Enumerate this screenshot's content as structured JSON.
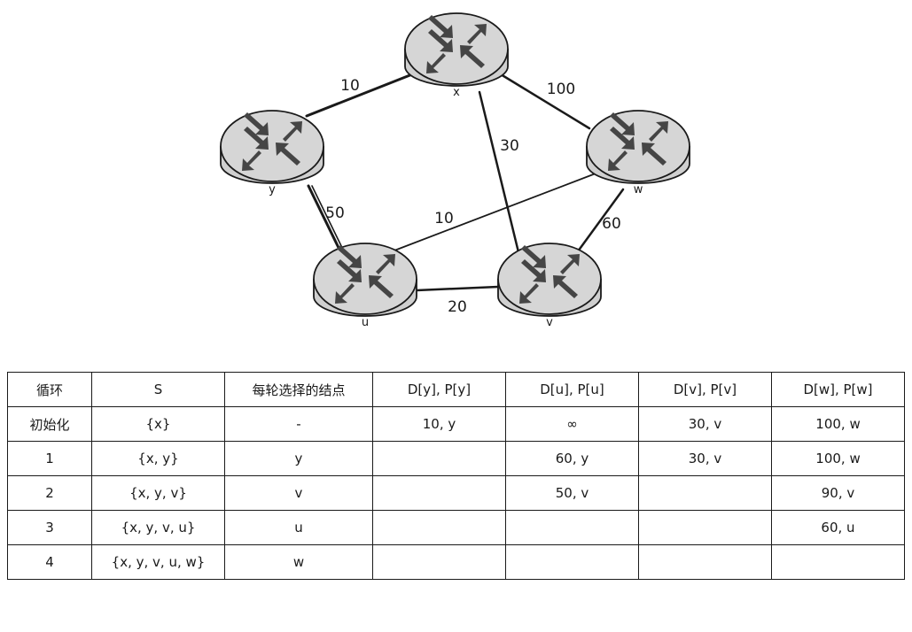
{
  "graph": {
    "nodes": [
      {
        "id": "x",
        "label": "x"
      },
      {
        "id": "y",
        "label": "y"
      },
      {
        "id": "w",
        "label": "w"
      },
      {
        "id": "u",
        "label": "u"
      },
      {
        "id": "v",
        "label": "v"
      }
    ],
    "edges": [
      {
        "from": "x",
        "to": "y",
        "weight": "10"
      },
      {
        "from": "x",
        "to": "w",
        "weight": "100"
      },
      {
        "from": "x",
        "to": "v",
        "weight": "30"
      },
      {
        "from": "y",
        "to": "u",
        "weight": "50"
      },
      {
        "from": "u",
        "to": "w",
        "weight": "10"
      },
      {
        "from": "w",
        "to": "v",
        "weight": "60"
      },
      {
        "from": "u",
        "to": "v",
        "weight": "20"
      }
    ]
  },
  "table": {
    "headers": [
      "循环",
      "S",
      "每轮选择的结点",
      "D[y], P[y]",
      "D[u], P[u]",
      "D[v], P[v]",
      "D[w], P[w]"
    ],
    "rows": [
      [
        "初始化",
        "{x}",
        "-",
        "10, y",
        "∞",
        "30, v",
        "100, w"
      ],
      [
        "1",
        "{x, y}",
        "y",
        "",
        "60, y",
        "30, v",
        "100, w"
      ],
      [
        "2",
        "{x, y, v}",
        "v",
        "",
        "50, v",
        "",
        "90, v"
      ],
      [
        "3",
        "{x, y, v, u}",
        "u",
        "",
        "",
        "",
        "60, u"
      ],
      [
        "4",
        "{x, y, v, u, w}",
        "w",
        "",
        "",
        "",
        ""
      ]
    ]
  }
}
